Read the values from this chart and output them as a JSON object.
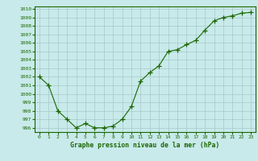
{
  "x": [
    0,
    1,
    2,
    3,
    4,
    5,
    6,
    7,
    8,
    9,
    10,
    11,
    12,
    13,
    14,
    15,
    16,
    17,
    18,
    19,
    20,
    21,
    22,
    23
  ],
  "y": [
    1002.0,
    1001.0,
    998.0,
    997.0,
    996.0,
    996.5,
    996.0,
    996.0,
    996.2,
    997.0,
    998.5,
    1001.5,
    1002.5,
    1003.3,
    1005.0,
    1005.2,
    1005.8,
    1006.3,
    1007.5,
    1008.6,
    1009.0,
    1009.2,
    1009.5,
    1009.6
  ],
  "ylim": [
    995.5,
    1010.3
  ],
  "xlim": [
    -0.5,
    23.5
  ],
  "yticks": [
    996,
    997,
    998,
    999,
    1000,
    1001,
    1002,
    1003,
    1004,
    1005,
    1006,
    1007,
    1008,
    1009,
    1010
  ],
  "xticks": [
    0,
    1,
    2,
    3,
    4,
    5,
    6,
    7,
    8,
    9,
    10,
    11,
    12,
    13,
    14,
    15,
    16,
    17,
    18,
    19,
    20,
    21,
    22,
    23
  ],
  "line_color": "#1a6600",
  "marker": "+",
  "marker_color": "#1a6600",
  "bg_color": "#c8eaea",
  "grid_color": "#a8c8c8",
  "xlabel": "Graphe pression niveau de la mer (hPa)",
  "xlabel_color": "#1a6600",
  "tick_color": "#1a6600",
  "axis_color": "#1a6600",
  "fig_width": 3.2,
  "fig_height": 2.0,
  "dpi": 100
}
